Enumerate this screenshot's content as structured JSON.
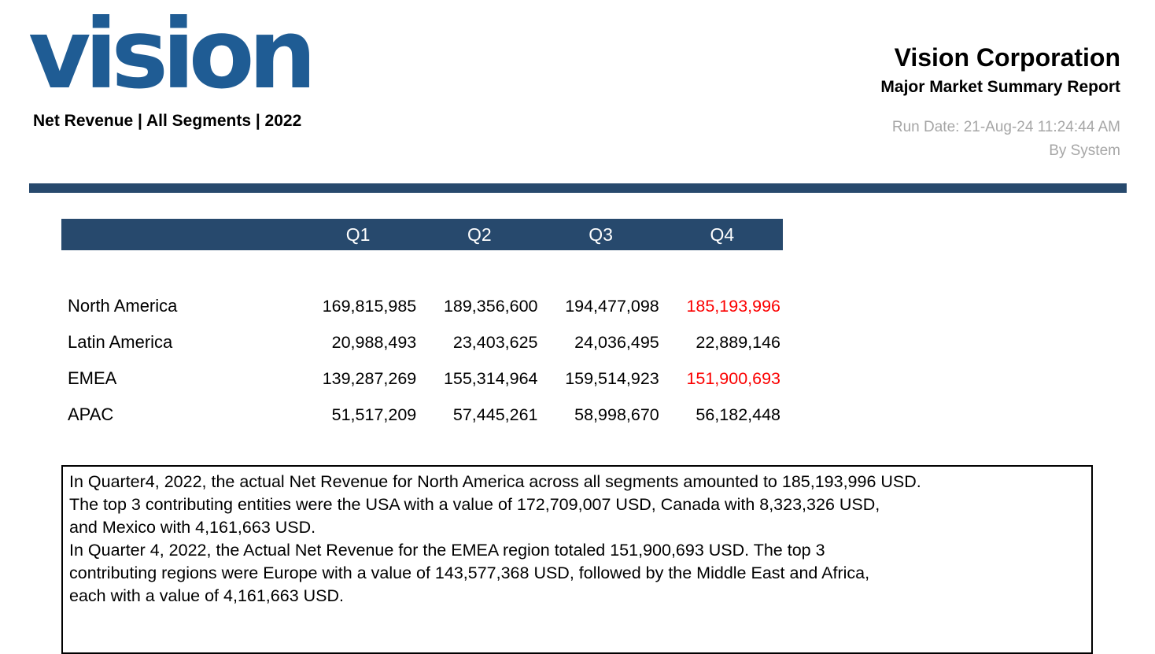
{
  "colors": {
    "logo_blue": "#1f5c94",
    "navy": "#27496d",
    "red": "#fb0000",
    "gray": "#a6a6a6"
  },
  "header": {
    "logo_text": "vision",
    "tagline": "Net Revenue | All Segments | 2022",
    "company": "Vision Corporation",
    "report_title": "Major Market Summary Report",
    "run_date": "Run Date: 21-Aug-24 11:24:44 AM",
    "run_by": "By System"
  },
  "table": {
    "columns": [
      "Q1",
      "Q2",
      "Q3",
      "Q4"
    ],
    "rows": [
      {
        "label": "North America",
        "values": [
          "169,815,985",
          "189,356,600",
          "194,477,098",
          "185,193,996"
        ],
        "red_cols": [
          3
        ]
      },
      {
        "label": "Latin America",
        "values": [
          "20,988,493",
          "23,403,625",
          "24,036,495",
          "22,889,146"
        ],
        "red_cols": []
      },
      {
        "label": "EMEA",
        "values": [
          "139,287,269",
          "155,314,964",
          "159,514,923",
          "151,900,693"
        ],
        "red_cols": [
          3
        ]
      },
      {
        "label": "APAC",
        "values": [
          "51,517,209",
          "57,445,261",
          "58,998,670",
          "56,182,448"
        ],
        "red_cols": []
      }
    ]
  },
  "narrative": {
    "lines": [
      "In Quarter4, 2022, the actual Net Revenue for North America across all segments amounted to 185,193,996 USD.",
      "The top 3 contributing entities were the USA with a value of 172,709,007 USD, Canada with 8,323,326 USD,",
      "and Mexico with 4,161,663 USD.",
      "In Quarter 4, 2022, the Actual Net Revenue for the EMEA region totaled 151,900,693 USD. The top 3",
      "contributing regions were Europe with a value of 143,577,368 USD, followed by the Middle East and Africa,",
      "each with a value of 4,161,663 USD."
    ]
  }
}
